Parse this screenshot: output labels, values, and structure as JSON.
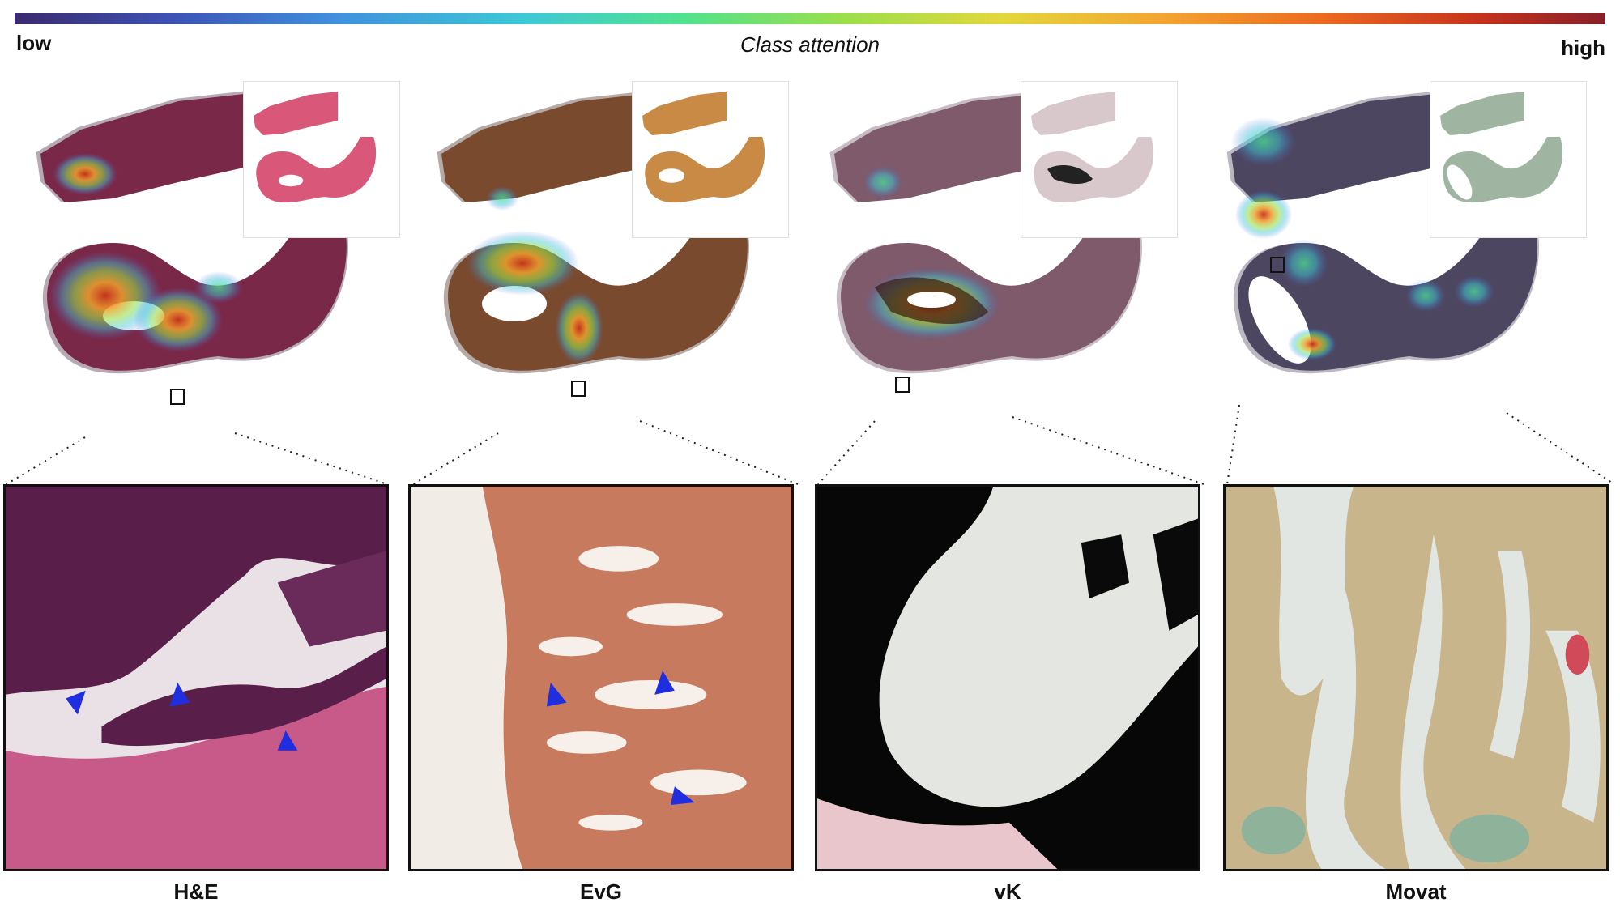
{
  "colorbar": {
    "title": "Class attention",
    "low_label": "low",
    "high_label": "high"
  },
  "panels": [
    {
      "stain": "H&E",
      "tissue_color": "#7a2848",
      "thumb_color": "#d9587a"
    },
    {
      "stain": "EvG",
      "tissue_color": "#7a4a2e",
      "thumb_color": "#c98a45"
    },
    {
      "stain": "vK",
      "tissue_color": "#7e5a6a",
      "thumb_color": "#d8c8cc"
    },
    {
      "stain": "Movat",
      "tissue_color": "#4d4660",
      "thumb_color": "#9fb5a2"
    }
  ],
  "annotations": {
    "arrowhead_color": "#1f2fe0",
    "arrowhead_counts": {
      "H&E": 3,
      "EvG": 3,
      "vK": 0,
      "Movat": 0
    }
  }
}
